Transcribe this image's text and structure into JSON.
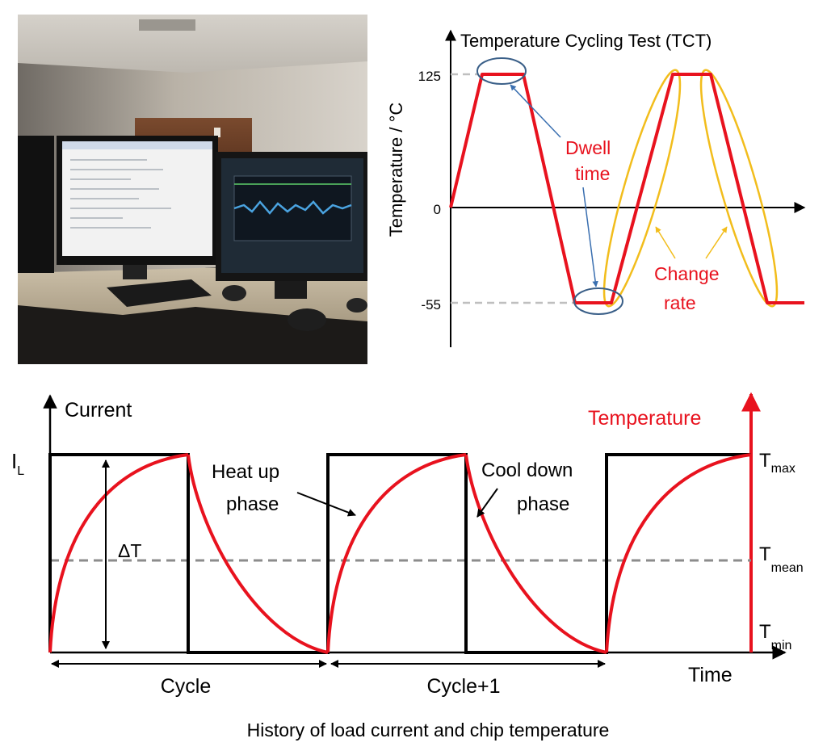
{
  "tct": {
    "title": "Temperature Cycling Test (TCT)",
    "y_axis_label": "Temperature / °C",
    "ticks": {
      "t125": "125",
      "t0": "0",
      "tm55": "-55"
    },
    "annotations": {
      "dwell_1": "Dwell",
      "dwell_2": "time",
      "change_1": "Change",
      "change_2": "rate"
    },
    "colors": {
      "profile": "#e8121e",
      "dwell_ellipse": "#3a5f88",
      "change_ellipse": "#f2bd1c",
      "dashed": "#bfbfbf"
    }
  },
  "cycle_diagram": {
    "y_label": "Current",
    "current_label_main": "I",
    "current_label_sub": "L",
    "temperature_label": "Temperature",
    "delta_label": "ΔT",
    "heat_label_1": "Heat up",
    "heat_label_2": "phase",
    "cool_label_1": "Cool down",
    "cool_label_2": "phase",
    "t_max_main": "T",
    "t_max_sub": "max",
    "t_mean_main": "T",
    "t_mean_sub": "mean",
    "t_min_main": "T",
    "t_min_sub": "min",
    "time_label": "Time",
    "cycle_label": "Cycle",
    "cycle_next_label": "Cycle+1",
    "caption": "History of load current and chip temperature",
    "colors": {
      "current": "#000000",
      "temperature": "#e8121e",
      "mean_line": "#8c8c8c"
    }
  }
}
